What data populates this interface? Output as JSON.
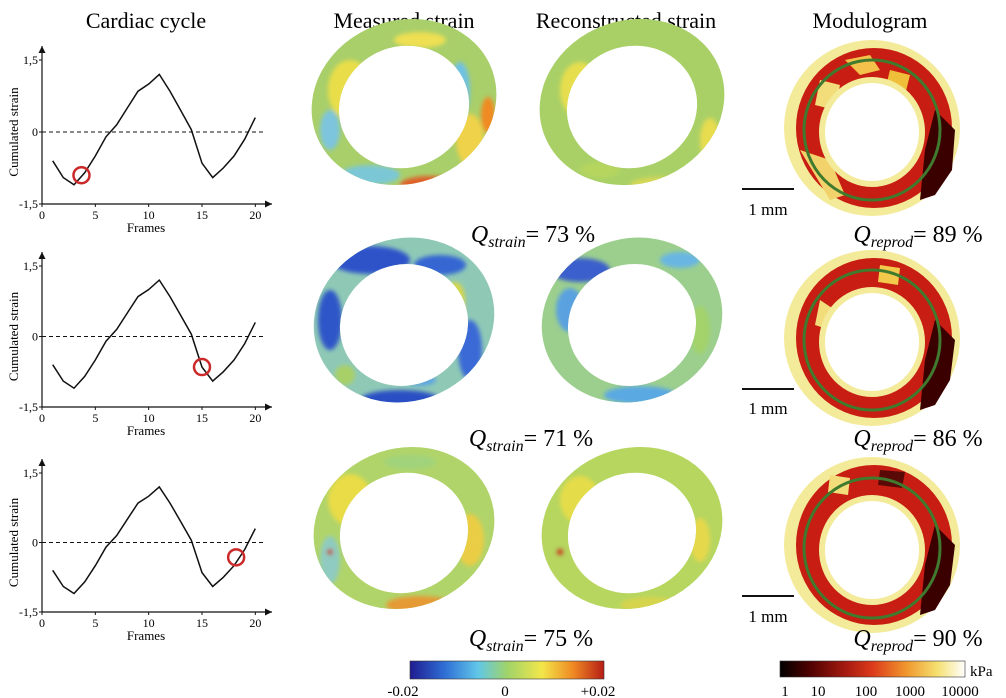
{
  "headings": {
    "cardiac_cycle": "Cardiac cycle",
    "measured_strain": "Measured strain",
    "reconstructed_strain": "Reconstructed strain",
    "modulogram": "Modulogram"
  },
  "colors": {
    "curve": "#111111",
    "marker": "#cc2a2a",
    "fit_circle": "#3f7a2e",
    "strain_base": "#9cc866",
    "modulogram_base": "#f3ea9a"
  },
  "icons": {
    "cycle_marker": "open-red-circle",
    "mean_circle": "green-circle-outline"
  },
  "scale_bar_label": "1 mm",
  "rows": [
    {
      "marker_frame": 3.7,
      "q_strain": {
        "symbol": "Q",
        "sub": "strain",
        "value": "= 73 %"
      },
      "q_reprod": {
        "symbol": "Q",
        "sub": "reprod",
        "value": "= 89 %"
      },
      "measured_pattern": "mostly-green-yellow",
      "reconstructed_pattern": "smooth-green",
      "modulogram_pattern": "dark-red-right"
    },
    {
      "marker_frame": 15.0,
      "q_strain": {
        "symbol": "Q",
        "sub": "strain",
        "value": "= 71 %"
      },
      "q_reprod": {
        "symbol": "Q",
        "sub": "reprod",
        "value": "= 86 %"
      },
      "measured_pattern": "blue-negative",
      "reconstructed_pattern": "blue-green",
      "modulogram_pattern": "dark-red-right"
    },
    {
      "marker_frame": 18.2,
      "q_strain": {
        "symbol": "Q",
        "sub": "strain",
        "value": "= 75 %"
      },
      "q_reprod": {
        "symbol": "Q",
        "sub": "reprod",
        "value": "= 90 %"
      },
      "measured_pattern": "yellow-positive",
      "reconstructed_pattern": "green-yellow",
      "modulogram_pattern": "dark-red-right"
    }
  ],
  "chart_data": [
    {
      "type": "line",
      "title": "Cardiac cycle",
      "xlabel": "Frames",
      "ylabel": "Cumulated strain",
      "xlim": [
        0,
        21
      ],
      "ylim": [
        -1.5,
        1.5
      ],
      "xticks": [
        "0",
        "5",
        "10",
        "15",
        "20"
      ],
      "yticks": [
        "-1,5",
        "0",
        "1,5"
      ],
      "grid": false,
      "reference_line": {
        "y": 0,
        "style": "dashed"
      },
      "x": [
        1,
        2,
        3,
        4,
        5,
        6,
        7,
        8,
        9,
        10,
        11,
        12,
        13,
        14,
        15,
        16,
        17,
        18,
        19,
        20
      ],
      "y": [
        -0.6,
        -0.95,
        -1.1,
        -0.85,
        -0.5,
        -0.1,
        0.15,
        0.5,
        0.85,
        1.0,
        1.2,
        0.85,
        0.45,
        0.05,
        -0.65,
        -0.95,
        -0.75,
        -0.5,
        -0.15,
        0.3
      ],
      "annotations": [
        {
          "x": 3.7,
          "y": -0.9,
          "marker": "open-circle"
        }
      ]
    },
    {
      "type": "line",
      "title": "",
      "xlabel": "Frames",
      "ylabel": "Cumulated strain",
      "xlim": [
        0,
        21
      ],
      "ylim": [
        -1.5,
        1.5
      ],
      "xticks": [
        "0",
        "5",
        "10",
        "15",
        "20"
      ],
      "yticks": [
        "-1,5",
        "0",
        "1,5"
      ],
      "grid": false,
      "reference_line": {
        "y": 0,
        "style": "dashed"
      },
      "x": [
        1,
        2,
        3,
        4,
        5,
        6,
        7,
        8,
        9,
        10,
        11,
        12,
        13,
        14,
        15,
        16,
        17,
        18,
        19,
        20
      ],
      "y": [
        -0.6,
        -0.95,
        -1.1,
        -0.85,
        -0.5,
        -0.1,
        0.15,
        0.5,
        0.85,
        1.0,
        1.2,
        0.85,
        0.45,
        0.05,
        -0.65,
        -0.95,
        -0.75,
        -0.5,
        -0.15,
        0.3
      ],
      "annotations": [
        {
          "x": 15.0,
          "y": -0.65,
          "marker": "open-circle"
        }
      ]
    },
    {
      "type": "line",
      "title": "",
      "xlabel": "Frames",
      "ylabel": "Cumulated strain",
      "xlim": [
        0,
        21
      ],
      "ylim": [
        -1.5,
        1.5
      ],
      "xticks": [
        "0",
        "5",
        "10",
        "15",
        "20"
      ],
      "yticks": [
        "-1,5",
        "0",
        "1,5"
      ],
      "grid": false,
      "reference_line": {
        "y": 0,
        "style": "dashed"
      },
      "x": [
        1,
        2,
        3,
        4,
        5,
        6,
        7,
        8,
        9,
        10,
        11,
        12,
        13,
        14,
        15,
        16,
        17,
        18,
        19,
        20
      ],
      "y": [
        -0.6,
        -0.95,
        -1.1,
        -0.85,
        -0.5,
        -0.1,
        0.15,
        0.5,
        0.85,
        1.0,
        1.2,
        0.85,
        0.45,
        0.05,
        -0.65,
        -0.95,
        -0.75,
        -0.5,
        -0.15,
        0.3
      ],
      "annotations": [
        {
          "x": 18.2,
          "y": -0.32,
          "marker": "open-circle"
        }
      ]
    }
  ],
  "colorbars": {
    "strain": {
      "ticks": [
        "-0.02",
        "0",
        "+0.02"
      ],
      "range": [
        -0.02,
        0.02
      ],
      "stops": [
        "#1f1b8f",
        "#2f6fd6",
        "#61c7e8",
        "#9fd36a",
        "#f2e64a",
        "#f08a24",
        "#b51d16"
      ]
    },
    "modulus": {
      "ticks": [
        "1",
        "10",
        "100",
        "1000",
        "10000"
      ],
      "unit": "kPa",
      "scale": "log",
      "stops": [
        "#000000",
        "#4a0000",
        "#a31a10",
        "#dc3a1a",
        "#f0962e",
        "#f5e070",
        "#ffffff"
      ]
    }
  }
}
